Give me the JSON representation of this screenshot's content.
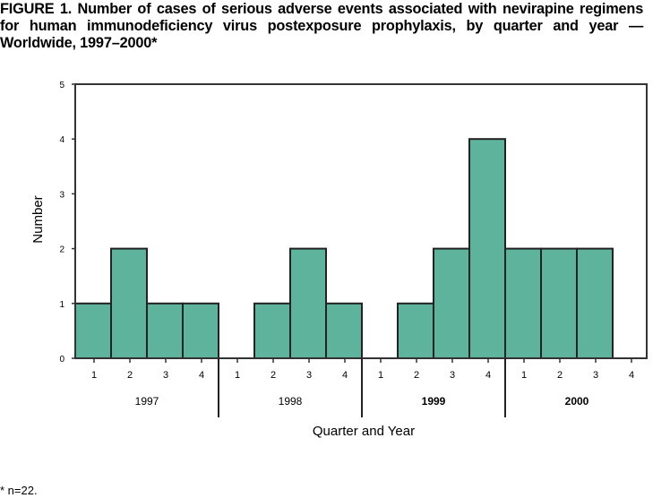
{
  "chart_data": {
    "type": "bar",
    "title": "FIGURE 1. Number of cases of serious adverse events associated with nevirapine regimens for human immunodeficiency virus postexposure prophylaxis, by quarter and year — Worldwide, 1997–2000*",
    "xlabel": "Quarter and Year",
    "ylabel": "Number",
    "ylim": [
      0,
      5
    ],
    "yticks": [
      "0",
      "1",
      "2",
      "3",
      "4",
      "5"
    ],
    "years": [
      "1997",
      "1998",
      "1999",
      "2000"
    ],
    "quarters": [
      "1",
      "2",
      "3",
      "4"
    ],
    "values": [
      1,
      2,
      1,
      1,
      0,
      1,
      2,
      1,
      0,
      1,
      2,
      4,
      2,
      2,
      2,
      0
    ],
    "bar_color": "#5db39b",
    "grid": false,
    "legend": "none"
  },
  "footnote": "* n=22."
}
